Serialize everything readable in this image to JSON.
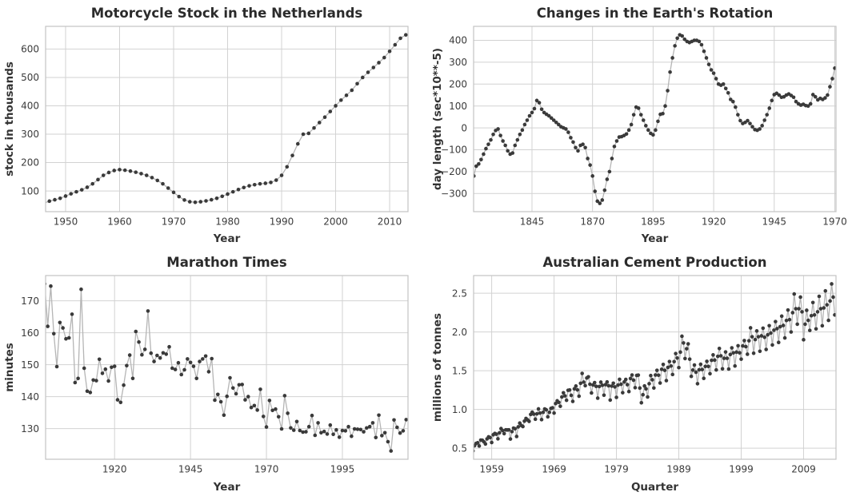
{
  "page": {
    "background": "#ffffff"
  },
  "style": {
    "marker_color": "#3a3a3a",
    "line_color": "#b5b5b5",
    "grid_color": "#d2d2d2",
    "spine_color": "#c3c3c3",
    "title_color": "#2b2b2b",
    "label_color": "#333333",
    "tick_color": "#3b3b3b"
  },
  "chart_data": [
    {
      "id": "motorcycle-stock",
      "type": "line",
      "title": "Motorcycle Stock in the Netherlands",
      "xlabel": "Year",
      "ylabel": "stock in thousands",
      "legend": "none",
      "grid": true,
      "x_start": 1946,
      "x_step": 1,
      "xlim": [
        1946.3,
        2013.4
      ],
      "ylim": [
        27,
        680
      ],
      "xtick_values": [
        1950,
        1960,
        1970,
        1980,
        1990,
        2000,
        2010
      ],
      "xtick_labels": [
        "1950",
        "1960",
        "1970",
        "1980",
        "1990",
        "2000",
        "2010"
      ],
      "ytick_values": [
        100,
        200,
        300,
        400,
        500,
        600
      ],
      "ytick_labels": [
        "100",
        "200",
        "300",
        "400",
        "500",
        "600"
      ],
      "values": [
        57,
        64,
        69,
        74,
        82,
        90,
        97,
        104,
        113,
        125,
        140,
        155,
        165,
        172,
        175,
        173,
        170,
        166,
        161,
        155,
        147,
        137,
        125,
        110,
        95,
        80,
        68,
        62,
        60,
        62,
        65,
        69,
        74,
        81,
        89,
        97,
        105,
        112,
        118,
        122,
        125,
        127,
        130,
        138,
        155,
        185,
        225,
        266,
        300,
        303,
        322,
        341,
        360,
        380,
        400,
        420,
        437,
        455,
        478,
        500,
        518,
        535,
        552,
        570,
        592,
        615,
        638,
        650
      ]
    },
    {
      "id": "earth-rotation",
      "type": "line",
      "title": "Changes in the Earth's Rotation",
      "xlabel": "Year",
      "ylabel": "day length (sec*10**-5)",
      "legend": "none",
      "grid": true,
      "x_start": 1821,
      "x_step": 1,
      "xlim": [
        1820.9,
        1970.5
      ],
      "ylim": [
        -383,
        464
      ],
      "xtick_values": [
        1845,
        1870,
        1895,
        1920,
        1945,
        1970
      ],
      "xtick_labels": [
        "1845",
        "1870",
        "1895",
        "1920",
        "1945",
        "1970"
      ],
      "ytick_values": [
        -300,
        -200,
        -100,
        0,
        100,
        200,
        300,
        400
      ],
      "ytick_labels": [
        "−300",
        "−200",
        "−100",
        "0",
        "100",
        "200",
        "300",
        "400"
      ],
      "values": [
        -220,
        -175,
        -165,
        -145,
        -120,
        -95,
        -75,
        -55,
        -30,
        -12,
        -5,
        -35,
        -60,
        -80,
        -105,
        -120,
        -115,
        -80,
        -55,
        -30,
        -10,
        15,
        35,
        55,
        70,
        88,
        125,
        115,
        85,
        70,
        62,
        55,
        45,
        35,
        25,
        15,
        5,
        0,
        -5,
        -20,
        -45,
        -65,
        -90,
        -105,
        -80,
        -75,
        -90,
        -140,
        -170,
        -220,
        -290,
        -335,
        -345,
        -330,
        -285,
        -235,
        -200,
        -140,
        -85,
        -60,
        -42,
        -40,
        -35,
        -28,
        -10,
        15,
        60,
        95,
        90,
        60,
        35,
        10,
        -10,
        -25,
        -32,
        -10,
        30,
        62,
        65,
        100,
        170,
        255,
        320,
        375,
        410,
        425,
        420,
        405,
        395,
        390,
        395,
        400,
        400,
        395,
        380,
        350,
        320,
        290,
        265,
        250,
        225,
        200,
        195,
        200,
        180,
        160,
        130,
        120,
        95,
        60,
        33,
        20,
        25,
        33,
        20,
        5,
        -8,
        -11,
        -5,
        10,
        35,
        60,
        90,
        125,
        152,
        158,
        150,
        140,
        142,
        150,
        155,
        148,
        140,
        120,
        110,
        104,
        108,
        102,
        100,
        110,
        152,
        142,
        128,
        135,
        130,
        137,
        150,
        188,
        225,
        273
      ]
    },
    {
      "id": "marathon-times",
      "type": "line",
      "title": "Marathon Times",
      "xlabel": "Year",
      "ylabel": "minutes",
      "legend": "none",
      "grid": true,
      "x_start": 1897,
      "x_step": 1,
      "xlim": [
        1897.3,
        2016.6
      ],
      "ylim": [
        120.4,
        177.9
      ],
      "xtick_values": [
        1920,
        1945,
        1970,
        1995
      ],
      "xtick_labels": [
        "1920",
        "1945",
        "1970",
        "1995"
      ],
      "ytick_values": [
        130,
        140,
        150,
        160,
        170
      ],
      "ytick_labels": [
        "130",
        "140",
        "150",
        "160",
        "170"
      ],
      "values": [
        175.3,
        162.0,
        174.6,
        159.7,
        149.4,
        163.2,
        161.5,
        158.1,
        158.4,
        165.8,
        144.4,
        145.7,
        173.6,
        148.9,
        141.7,
        141.3,
        145.2,
        145.0,
        151.7,
        147.3,
        148.6,
        144.9,
        149.2,
        149.5,
        139.0,
        138.2,
        143.6,
        149.7,
        153.0,
        145.7,
        160.4,
        157.1,
        153.1,
        154.8,
        166.8,
        153.6,
        151.0,
        152.9,
        152.1,
        153.7,
        153.3,
        155.6,
        148.9,
        148.5,
        150.6,
        146.9,
        148.4,
        151.8,
        150.7,
        149.5,
        145.7,
        151.0,
        151.8,
        152.7,
        147.8,
        151.9,
        138.9,
        140.7,
        138.4,
        134.2,
        140.1,
        145.9,
        142.7,
        140.9,
        143.7,
        143.8,
        139.0,
        140.0,
        136.6,
        137.2,
        135.8,
        142.3,
        133.8,
        130.5,
        138.8,
        135.7,
        136.1,
        133.7,
        129.9,
        140.3,
        134.8,
        130.2,
        129.5,
        132.2,
        129.4,
        128.9,
        129.0,
        130.6,
        134.1,
        127.9,
        131.8,
        128.7,
        129.1,
        128.3,
        131.1,
        128.2,
        129.6,
        127.3,
        129.4,
        129.3,
        130.6,
        127.6,
        129.9,
        129.8,
        129.7,
        129.0,
        130.2,
        130.6,
        131.8,
        127.2,
        134.2,
        127.8,
        128.7,
        125.9,
        123.0,
        132.7,
        130.4,
        128.6,
        129.3,
        132.8
      ]
    },
    {
      "id": "australian-cement",
      "type": "line",
      "title": "Australian Cement Production",
      "xlabel": "Quarter",
      "ylabel": "millions of tonnes",
      "legend": "none",
      "grid": true,
      "x_start": 1956,
      "x_step": 0.25,
      "xlim": [
        1956.1,
        2014.2
      ],
      "ylim": [
        0.357,
        2.728
      ],
      "xtick_values": [
        1959,
        1969,
        1979,
        1989,
        1999,
        2009
      ],
      "xtick_labels": [
        "1959",
        "1969",
        "1979",
        "1989",
        "1999",
        "2009"
      ],
      "ytick_values": [
        0.5,
        1.0,
        1.5,
        2.0,
        2.5
      ],
      "ytick_labels": [
        "0.5",
        "1.0",
        "1.5",
        "2.0",
        "2.5"
      ],
      "values": [
        0.465,
        0.532,
        0.561,
        0.57,
        0.529,
        0.604,
        0.603,
        0.582,
        0.554,
        0.62,
        0.646,
        0.637,
        0.573,
        0.673,
        0.69,
        0.681,
        0.621,
        0.698,
        0.753,
        0.728,
        0.688,
        0.737,
        0.735,
        0.737,
        0.618,
        0.714,
        0.759,
        0.751,
        0.651,
        0.775,
        0.824,
        0.793,
        0.779,
        0.849,
        0.884,
        0.865,
        0.846,
        0.936,
        0.965,
        0.94,
        0.874,
        0.943,
        1.007,
        0.953,
        0.869,
        0.963,
        1.006,
        0.995,
        0.905,
        0.963,
        1.013,
        1.021,
        0.953,
        1.076,
        1.111,
        1.091,
        1.041,
        1.161,
        1.215,
        1.175,
        1.118,
        1.247,
        1.251,
        1.182,
        1.104,
        1.266,
        1.302,
        1.253,
        1.171,
        1.337,
        1.465,
        1.353,
        1.307,
        1.406,
        1.421,
        1.326,
        1.213,
        1.316,
        1.346,
        1.298,
        1.146,
        1.296,
        1.352,
        1.312,
        1.184,
        1.32,
        1.355,
        1.306,
        1.121,
        1.301,
        1.339,
        1.291,
        1.156,
        1.314,
        1.389,
        1.325,
        1.216,
        1.355,
        1.388,
        1.32,
        1.231,
        1.4,
        1.444,
        1.378,
        1.281,
        1.439,
        1.443,
        1.276,
        1.086,
        1.19,
        1.303,
        1.266,
        1.161,
        1.332,
        1.437,
        1.383,
        1.277,
        1.444,
        1.505,
        1.442,
        1.341,
        1.518,
        1.581,
        1.505,
        1.372,
        1.542,
        1.618,
        1.56,
        1.451,
        1.617,
        1.721,
        1.663,
        1.54,
        1.74,
        1.945,
        1.858,
        1.657,
        1.783,
        1.846,
        1.649,
        1.427,
        1.508,
        1.573,
        1.481,
        1.332,
        1.511,
        1.583,
        1.515,
        1.401,
        1.555,
        1.621,
        1.555,
        1.461,
        1.634,
        1.704,
        1.637,
        1.51,
        1.685,
        1.787,
        1.692,
        1.524,
        1.66,
        1.742,
        1.66,
        1.522,
        1.709,
        1.795,
        1.73,
        1.561,
        1.74,
        1.822,
        1.731,
        1.649,
        1.82,
        1.889,
        1.811,
        1.713,
        1.886,
        2.053,
        1.938,
        1.725,
        1.902,
        2.013,
        1.938,
        1.751,
        1.95,
        2.049,
        1.931,
        1.774,
        1.963,
        2.081,
        1.986,
        1.832,
        2.023,
        2.134,
        2.043,
        1.865,
        2.068,
        2.204,
        2.084,
        1.923,
        2.148,
        2.283,
        2.159,
        2.0,
        2.249,
        2.49,
        2.3,
        2.1,
        2.3,
        2.45,
        2.26,
        1.9,
        2.1,
        2.28,
        2.15,
        2.02,
        2.21,
        2.38,
        2.22,
        2.04,
        2.26,
        2.46,
        2.3,
        2.08,
        2.31,
        2.53,
        2.35,
        2.15,
        2.4,
        2.62,
        2.45,
        2.22
      ]
    }
  ]
}
